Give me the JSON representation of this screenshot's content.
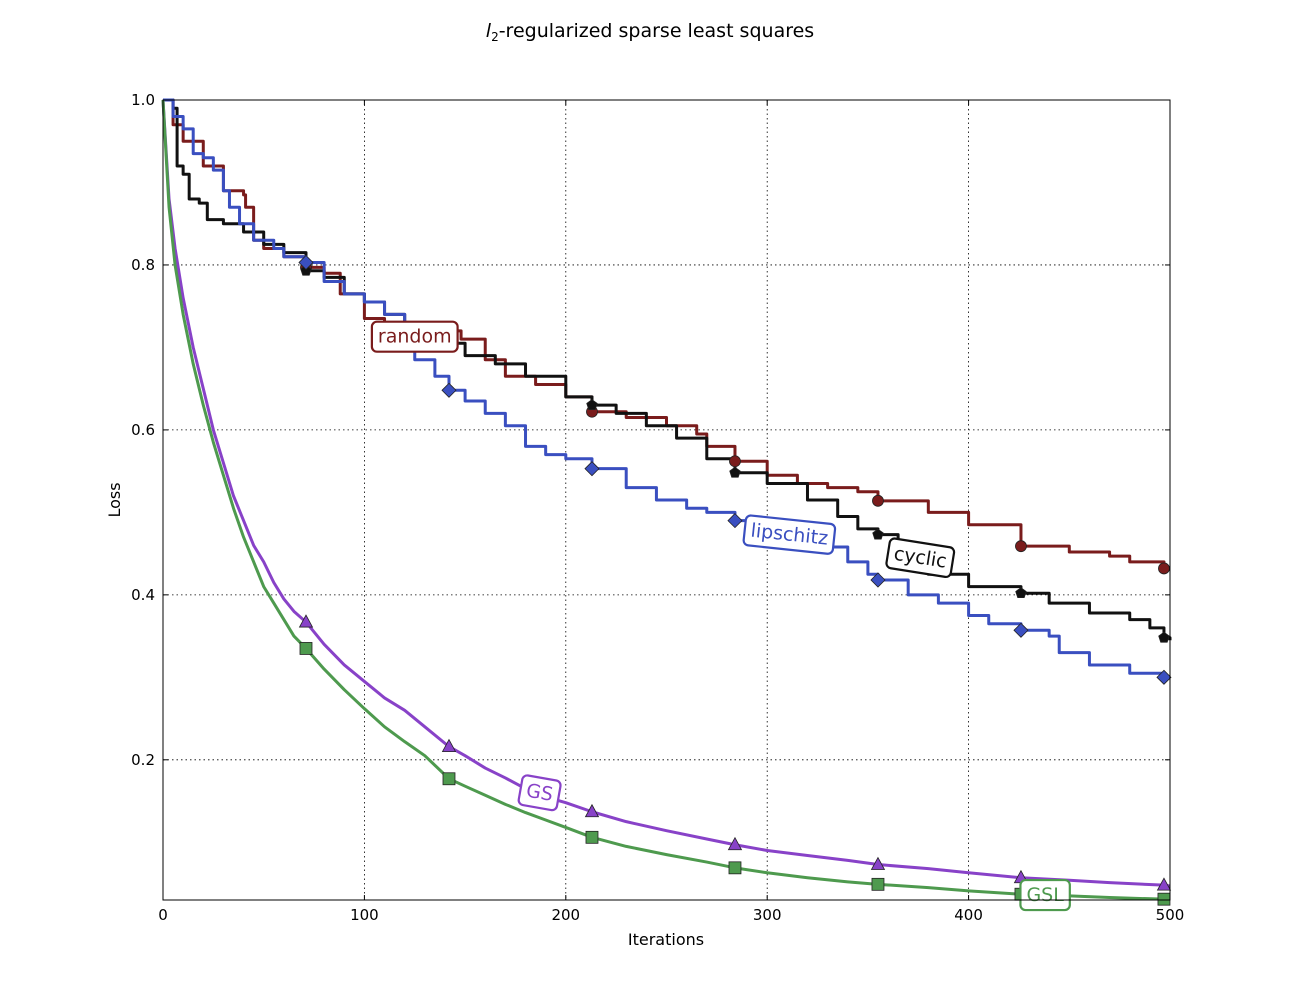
{
  "chart_data": {
    "type": "line",
    "title": "l2-regularized sparse least squares",
    "title_main": "l",
    "title_sub": "2",
    "title_rest": "-regularized sparse least squares",
    "xlabel": "Iterations",
    "ylabel": "Loss",
    "xlim": [
      0,
      500
    ],
    "ylim": [
      0.03,
      1.0
    ],
    "xticks": [
      0,
      100,
      200,
      300,
      400,
      500
    ],
    "xtick_labels": [
      "0",
      "100",
      "200",
      "300",
      "400",
      "500"
    ],
    "yticks": [
      0.2,
      0.4,
      0.6,
      0.8,
      1.0
    ],
    "ytick_labels": [
      "0.2",
      "0.4",
      "0.6",
      "0.8",
      "1.0"
    ],
    "grid": true,
    "legend": "inline labels",
    "series": [
      {
        "name": "random",
        "color": "#7a1c1c",
        "marker": "circle",
        "step": true,
        "points": [
          [
            0,
            1.0
          ],
          [
            5,
            0.97
          ],
          [
            10,
            0.95
          ],
          [
            20,
            0.92
          ],
          [
            30,
            0.89
          ],
          [
            40,
            0.885
          ],
          [
            41,
            0.87
          ],
          [
            45,
            0.83
          ],
          [
            50,
            0.82
          ],
          [
            60,
            0.81
          ],
          [
            71,
            0.797
          ],
          [
            80,
            0.79
          ],
          [
            88,
            0.765
          ],
          [
            100,
            0.735
          ],
          [
            110,
            0.725
          ],
          [
            130,
            0.72
          ],
          [
            148,
            0.71
          ],
          [
            160,
            0.685
          ],
          [
            170,
            0.665
          ],
          [
            185,
            0.655
          ],
          [
            200,
            0.64
          ],
          [
            213,
            0.622
          ],
          [
            230,
            0.615
          ],
          [
            250,
            0.605
          ],
          [
            265,
            0.595
          ],
          [
            270,
            0.58
          ],
          [
            284,
            0.562
          ],
          [
            300,
            0.545
          ],
          [
            315,
            0.535
          ],
          [
            330,
            0.53
          ],
          [
            345,
            0.525
          ],
          [
            355,
            0.514
          ],
          [
            380,
            0.5
          ],
          [
            400,
            0.485
          ],
          [
            426,
            0.459
          ],
          [
            450,
            0.452
          ],
          [
            470,
            0.447
          ],
          [
            480,
            0.44
          ],
          [
            497,
            0.432
          ],
          [
            500,
            0.432
          ]
        ],
        "marker_x": [
          71,
          142,
          213,
          284,
          355,
          426,
          497
        ]
      },
      {
        "name": "cyclic",
        "color": "#111111",
        "marker": "pentagon",
        "step": true,
        "points": [
          [
            0,
            1.0
          ],
          [
            3,
            1.0
          ],
          [
            5,
            0.99
          ],
          [
            7,
            0.92
          ],
          [
            10,
            0.91
          ],
          [
            13,
            0.88
          ],
          [
            18,
            0.875
          ],
          [
            22,
            0.855
          ],
          [
            30,
            0.85
          ],
          [
            40,
            0.84
          ],
          [
            50,
            0.825
          ],
          [
            60,
            0.815
          ],
          [
            71,
            0.793
          ],
          [
            80,
            0.785
          ],
          [
            90,
            0.765
          ],
          [
            100,
            0.755
          ],
          [
            110,
            0.74
          ],
          [
            120,
            0.73
          ],
          [
            130,
            0.72
          ],
          [
            140,
            0.705
          ],
          [
            150,
            0.69
          ],
          [
            165,
            0.68
          ],
          [
            180,
            0.665
          ],
          [
            200,
            0.64
          ],
          [
            213,
            0.63
          ],
          [
            225,
            0.62
          ],
          [
            240,
            0.605
          ],
          [
            255,
            0.59
          ],
          [
            270,
            0.565
          ],
          [
            284,
            0.548
          ],
          [
            300,
            0.535
          ],
          [
            320,
            0.515
          ],
          [
            335,
            0.495
          ],
          [
            345,
            0.48
          ],
          [
            355,
            0.473
          ],
          [
            365,
            0.45
          ],
          [
            380,
            0.425
          ],
          [
            400,
            0.41
          ],
          [
            426,
            0.402
          ],
          [
            440,
            0.39
          ],
          [
            460,
            0.378
          ],
          [
            480,
            0.37
          ],
          [
            490,
            0.36
          ],
          [
            497,
            0.348
          ],
          [
            500,
            0.345
          ]
        ],
        "marker_x": [
          71,
          142,
          213,
          284,
          355,
          426,
          497
        ]
      },
      {
        "name": "lipschitz",
        "color": "#3a4fc0",
        "marker": "diamond",
        "step": true,
        "points": [
          [
            0,
            1.0
          ],
          [
            5,
            0.98
          ],
          [
            10,
            0.965
          ],
          [
            15,
            0.935
          ],
          [
            20,
            0.93
          ],
          [
            25,
            0.915
          ],
          [
            30,
            0.89
          ],
          [
            33,
            0.87
          ],
          [
            38,
            0.85
          ],
          [
            45,
            0.83
          ],
          [
            55,
            0.82
          ],
          [
            60,
            0.81
          ],
          [
            71,
            0.803
          ],
          [
            80,
            0.78
          ],
          [
            90,
            0.765
          ],
          [
            100,
            0.755
          ],
          [
            110,
            0.74
          ],
          [
            120,
            0.73
          ],
          [
            122,
            0.7
          ],
          [
            125,
            0.685
          ],
          [
            135,
            0.665
          ],
          [
            142,
            0.648
          ],
          [
            150,
            0.635
          ],
          [
            160,
            0.62
          ],
          [
            170,
            0.605
          ],
          [
            180,
            0.58
          ],
          [
            190,
            0.57
          ],
          [
            200,
            0.565
          ],
          [
            213,
            0.553
          ],
          [
            230,
            0.53
          ],
          [
            245,
            0.515
          ],
          [
            260,
            0.505
          ],
          [
            270,
            0.5
          ],
          [
            284,
            0.49
          ],
          [
            300,
            0.472
          ],
          [
            320,
            0.458
          ],
          [
            340,
            0.44
          ],
          [
            350,
            0.425
          ],
          [
            355,
            0.418
          ],
          [
            370,
            0.4
          ],
          [
            385,
            0.39
          ],
          [
            400,
            0.375
          ],
          [
            410,
            0.365
          ],
          [
            426,
            0.357
          ],
          [
            440,
            0.35
          ],
          [
            445,
            0.33
          ],
          [
            460,
            0.315
          ],
          [
            480,
            0.305
          ],
          [
            497,
            0.3
          ],
          [
            500,
            0.3
          ]
        ],
        "marker_x": [
          71,
          142,
          213,
          284,
          355,
          426,
          497
        ]
      },
      {
        "name": "GS",
        "color": "#8842c8",
        "marker": "triangle",
        "step": false,
        "points": [
          [
            0,
            1.0
          ],
          [
            3,
            0.88
          ],
          [
            6,
            0.82
          ],
          [
            10,
            0.76
          ],
          [
            15,
            0.7
          ],
          [
            20,
            0.65
          ],
          [
            25,
            0.6
          ],
          [
            30,
            0.56
          ],
          [
            35,
            0.52
          ],
          [
            40,
            0.49
          ],
          [
            45,
            0.46
          ],
          [
            50,
            0.44
          ],
          [
            55,
            0.415
          ],
          [
            60,
            0.395
          ],
          [
            65,
            0.38
          ],
          [
            71,
            0.367
          ],
          [
            80,
            0.34
          ],
          [
            90,
            0.315
          ],
          [
            100,
            0.295
          ],
          [
            110,
            0.275
          ],
          [
            120,
            0.26
          ],
          [
            130,
            0.24
          ],
          [
            142,
            0.216
          ],
          [
            150,
            0.205
          ],
          [
            160,
            0.19
          ],
          [
            170,
            0.178
          ],
          [
            180,
            0.165
          ],
          [
            190,
            0.155
          ],
          [
            200,
            0.148
          ],
          [
            213,
            0.137
          ],
          [
            230,
            0.125
          ],
          [
            250,
            0.114
          ],
          [
            270,
            0.104
          ],
          [
            284,
            0.097
          ],
          [
            300,
            0.09
          ],
          [
            320,
            0.084
          ],
          [
            340,
            0.078
          ],
          [
            355,
            0.073
          ],
          [
            380,
            0.068
          ],
          [
            400,
            0.063
          ],
          [
            426,
            0.057
          ],
          [
            450,
            0.054
          ],
          [
            470,
            0.051
          ],
          [
            497,
            0.048
          ],
          [
            500,
            0.047
          ]
        ],
        "marker_x": [
          71,
          142,
          213,
          284,
          355,
          426,
          497
        ]
      },
      {
        "name": "GSL",
        "color": "#4e9a4e",
        "marker": "square",
        "step": false,
        "points": [
          [
            0,
            1.0
          ],
          [
            3,
            0.87
          ],
          [
            6,
            0.8
          ],
          [
            10,
            0.74
          ],
          [
            15,
            0.68
          ],
          [
            20,
            0.63
          ],
          [
            25,
            0.585
          ],
          [
            30,
            0.545
          ],
          [
            35,
            0.505
          ],
          [
            40,
            0.47
          ],
          [
            45,
            0.44
          ],
          [
            50,
            0.41
          ],
          [
            55,
            0.39
          ],
          [
            60,
            0.37
          ],
          [
            65,
            0.35
          ],
          [
            71,
            0.335
          ],
          [
            80,
            0.31
          ],
          [
            90,
            0.285
          ],
          [
            100,
            0.262
          ],
          [
            110,
            0.24
          ],
          [
            120,
            0.222
          ],
          [
            130,
            0.205
          ],
          [
            142,
            0.177
          ],
          [
            150,
            0.168
          ],
          [
            160,
            0.157
          ],
          [
            170,
            0.146
          ],
          [
            180,
            0.136
          ],
          [
            190,
            0.127
          ],
          [
            200,
            0.118
          ],
          [
            213,
            0.106
          ],
          [
            230,
            0.095
          ],
          [
            250,
            0.085
          ],
          [
            270,
            0.076
          ],
          [
            284,
            0.069
          ],
          [
            300,
            0.063
          ],
          [
            320,
            0.057
          ],
          [
            340,
            0.052
          ],
          [
            355,
            0.049
          ],
          [
            380,
            0.045
          ],
          [
            400,
            0.041
          ],
          [
            426,
            0.037
          ],
          [
            450,
            0.035
          ],
          [
            470,
            0.033
          ],
          [
            497,
            0.031
          ],
          [
            500,
            0.031
          ]
        ],
        "marker_x": [
          71,
          142,
          213,
          284,
          355,
          426,
          497
        ]
      }
    ],
    "annotations": [
      {
        "text": "random",
        "x": 125,
        "y": 0.713,
        "angle": 0,
        "color": "#7a1c1c"
      },
      {
        "text": "lipschitz",
        "x": 311,
        "y": 0.473,
        "angle": 6,
        "color": "#3a4fc0"
      },
      {
        "text": "cyclic",
        "x": 376,
        "y": 0.445,
        "angle": 9,
        "color": "#111111"
      },
      {
        "text": "GS",
        "x": 187,
        "y": 0.16,
        "angle": 10,
        "color": "#8842c8"
      },
      {
        "text": "GSL",
        "x": 438,
        "y": 0.036,
        "angle": 0,
        "color": "#4e9a4e"
      }
    ]
  }
}
